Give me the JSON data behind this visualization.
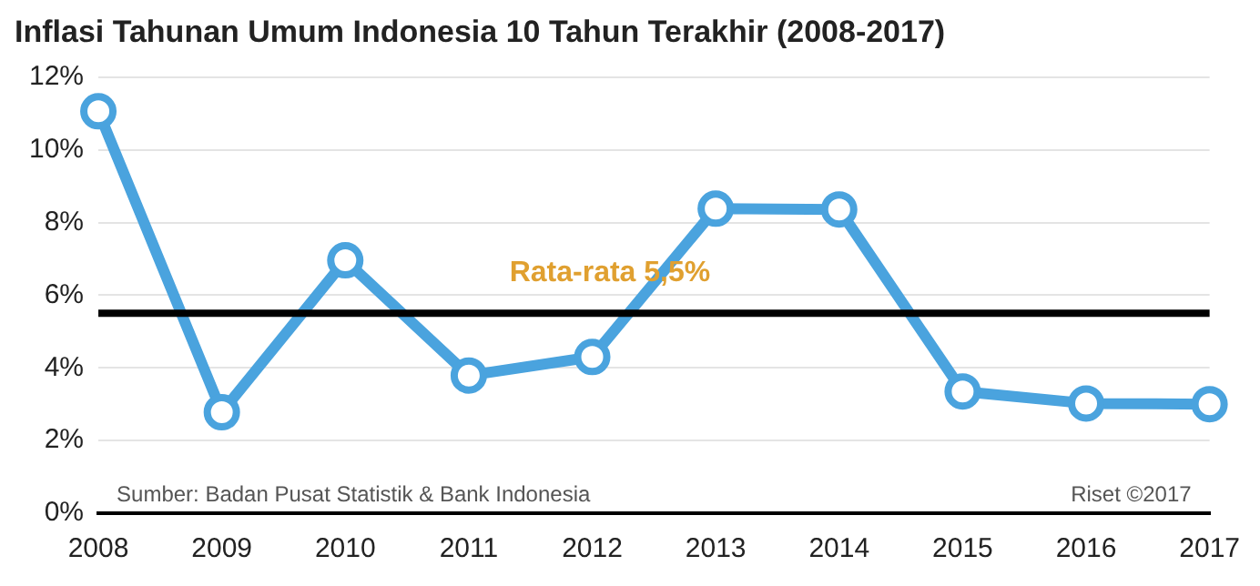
{
  "chart_data": {
    "type": "line",
    "title": "Inflasi Tahunan Umum Indonesia 10 Tahun Terakhir (2008-2017)",
    "categories": [
      "2008",
      "2009",
      "2010",
      "2011",
      "2012",
      "2013",
      "2014",
      "2015",
      "2016",
      "2017"
    ],
    "series": [
      {
        "color": "#4aa3de",
        "values": [
          11.06,
          2.78,
          6.96,
          3.79,
          4.3,
          8.38,
          8.36,
          3.35,
          3.02,
          3.0
        ]
      }
    ],
    "ylim": [
      0,
      12
    ],
    "yticks": [
      {
        "value": 0,
        "label": "0%"
      },
      {
        "value": 2,
        "label": "2%"
      },
      {
        "value": 4,
        "label": "4%"
      },
      {
        "value": 6,
        "label": "6%"
      },
      {
        "value": 8,
        "label": "8%"
      },
      {
        "value": 10,
        "label": "10%"
      },
      {
        "value": 12,
        "label": "12%"
      }
    ],
    "grid": "y",
    "marker": "circle",
    "line_style": "solid",
    "legend": false,
    "ref_lines": [
      {
        "axis": "y",
        "value": 5.5,
        "label": "Rata-rata 5,5%",
        "color": "#000000"
      }
    ],
    "annotations": [
      "Sumber: Badan Pusat Statistik & Bank Indonesia",
      "Riset ©2017"
    ]
  }
}
